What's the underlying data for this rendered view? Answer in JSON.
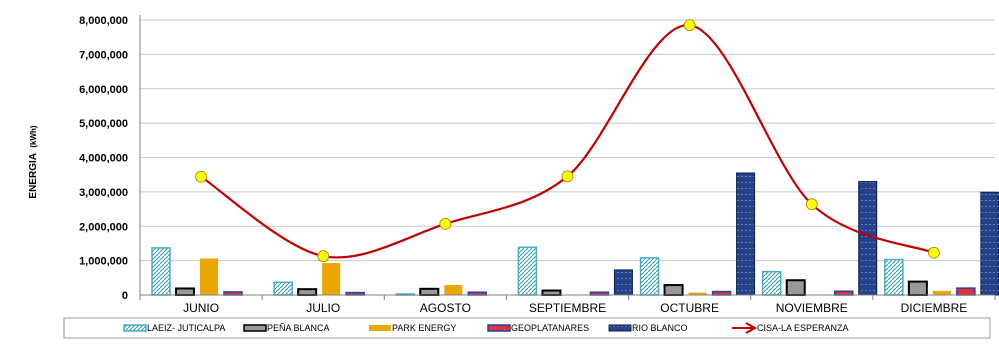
{
  "chart_data": {
    "type": "bar",
    "ylabel": "ENERGIA",
    "ylabel_unit": "(kWh)",
    "ylim": [
      0,
      8000000
    ],
    "yticks": [
      0,
      1000000,
      2000000,
      3000000,
      4000000,
      5000000,
      6000000,
      7000000,
      8000000
    ],
    "ytick_labels": [
      "0",
      "1,000,000",
      "2,000,000",
      "3,000,000",
      "4,000,000",
      "5,000,000",
      "6,000,000",
      "7,000,000",
      "8,000,000"
    ],
    "grid": "horizontal",
    "legend_position": "bottom",
    "categories": [
      "JUNIO",
      "JULIO",
      "AGOSTO",
      "SEPTIEMBRE",
      "OCTUBRE",
      "NOVIEMBRE",
      "DICIEMBRE"
    ],
    "series": [
      {
        "name": "LAEIZ- JUTICALPA",
        "kind": "bar",
        "style": "hatch",
        "color": "#4bacc6",
        "values": [
          1370000,
          370000,
          30000,
          1390000,
          1080000,
          680000,
          1030000
        ]
      },
      {
        "name": "PEÑA BLANCA",
        "kind": "bar",
        "style": "gray",
        "color": "#999999",
        "values": [
          190000,
          170000,
          180000,
          130000,
          290000,
          430000,
          390000
        ]
      },
      {
        "name": "PARK ENERGY",
        "kind": "bar",
        "style": "gold",
        "color": "#e8a800",
        "values": [
          1060000,
          930000,
          290000,
          0,
          70000,
          0,
          120000
        ]
      },
      {
        "name": "GEOPLATANARES",
        "kind": "bar",
        "style": "red",
        "color": "#e0303a",
        "values": [
          90000,
          70000,
          80000,
          80000,
          100000,
          110000,
          200000
        ]
      },
      {
        "name": "RIO BLANCO",
        "kind": "bar",
        "style": "navy",
        "color": "#24418a",
        "values": [
          0,
          0,
          0,
          730000,
          3550000,
          3300000,
          2990000
        ]
      },
      {
        "name": "CISA-LA ESPERANZA",
        "kind": "line",
        "color": "#c00000",
        "marker_color": "#ffff00",
        "values": [
          3440000,
          1130000,
          2070000,
          3450000,
          7850000,
          2640000,
          1230000
        ]
      }
    ]
  }
}
